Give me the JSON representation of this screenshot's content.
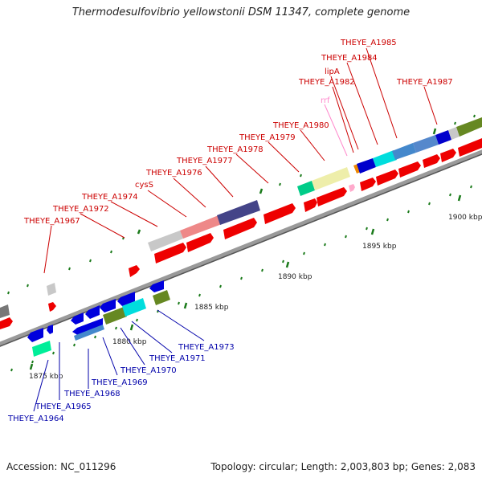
{
  "title": "Thermodesulfovibrio yellowstonii DSM 11347, complete genome",
  "footer": {
    "accession": "Accession: NC_011296",
    "summary": "Topology: circular; Length: 2,003,803 bp; Genes: 2,083"
  },
  "colors": {
    "backbone": "#888888",
    "forward_label": "#cc0000",
    "reverse_label": "#0000aa",
    "tick": "#1a7a1a"
  },
  "ticks": [
    "1875 kbp",
    "1880 kbp",
    "1885 kbp",
    "1890 kbp",
    "1895 kbp",
    "1900 kbp"
  ],
  "forward_labels": [
    "THEYE_A1967",
    "THEYE_A1972",
    "THEYE_A1974",
    "cysS",
    "THEYE_A1976",
    "THEYE_A1977",
    "THEYE_A1978",
    "THEYE_A1979",
    "THEYE_A1980",
    "rrf",
    "THEYE_A1982",
    "lipA",
    "THEYE_A1984",
    "THEYE_A1985",
    "THEYE_A1987"
  ],
  "reverse_labels": [
    "THEYE_A1964",
    "THEYE_A1965",
    "THEYE_A1968",
    "THEYE_A1969",
    "THEYE_A1970",
    "THEYE_A1971",
    "THEYE_A1973"
  ]
}
